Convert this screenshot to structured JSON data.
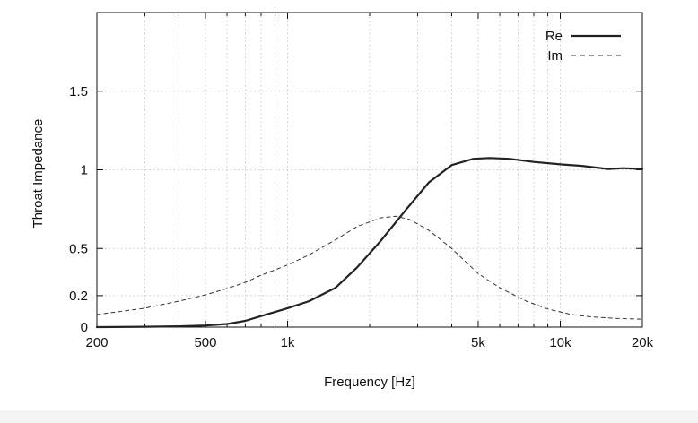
{
  "chart_data": {
    "type": "line",
    "xlabel": "Frequency [Hz]",
    "ylabel": "Throat Impedance",
    "x_scale": "log",
    "xlim": [
      200,
      20000
    ],
    "ylim": [
      0,
      2.0
    ],
    "grid": true,
    "legend_position": "top-right",
    "x_ticks": [
      {
        "value": 200,
        "label": "200"
      },
      {
        "value": 500,
        "label": "500"
      },
      {
        "value": 1000,
        "label": "1k"
      },
      {
        "value": 5000,
        "label": "5k"
      },
      {
        "value": 10000,
        "label": "10k"
      },
      {
        "value": 20000,
        "label": "20k"
      }
    ],
    "y_ticks": [
      {
        "value": 0,
        "label": "0"
      },
      {
        "value": 0.2,
        "label": "0.2"
      },
      {
        "value": 0.5,
        "label": "0.5"
      },
      {
        "value": 1,
        "label": "1"
      },
      {
        "value": 1.5,
        "label": "1.5"
      }
    ],
    "series": [
      {
        "name": "Re",
        "style": "solid",
        "color": "#222222",
        "x": [
          200,
          300,
          400,
          500,
          600,
          700,
          800,
          1000,
          1200,
          1500,
          1800,
          2200,
          2700,
          3300,
          4000,
          4800,
          5500,
          6500,
          8000,
          10000,
          12000,
          15000,
          17000,
          20000
        ],
        "y": [
          0.0,
          0.002,
          0.005,
          0.01,
          0.02,
          0.04,
          0.07,
          0.12,
          0.165,
          0.25,
          0.38,
          0.55,
          0.74,
          0.92,
          1.03,
          1.07,
          1.075,
          1.07,
          1.05,
          1.035,
          1.025,
          1.005,
          1.01,
          1.005
        ]
      },
      {
        "name": "Im",
        "style": "dashed",
        "color": "#333333",
        "x": [
          200,
          300,
          400,
          500,
          600,
          700,
          800,
          1000,
          1200,
          1500,
          1800,
          2200,
          2500,
          2800,
          3300,
          4000,
          5000,
          6000,
          7500,
          9000,
          11000,
          13000,
          16000,
          20000
        ],
        "y": [
          0.08,
          0.12,
          0.165,
          0.205,
          0.245,
          0.285,
          0.33,
          0.395,
          0.46,
          0.555,
          0.64,
          0.695,
          0.705,
          0.685,
          0.615,
          0.5,
          0.34,
          0.25,
          0.165,
          0.115,
          0.08,
          0.065,
          0.055,
          0.05
        ]
      }
    ]
  }
}
